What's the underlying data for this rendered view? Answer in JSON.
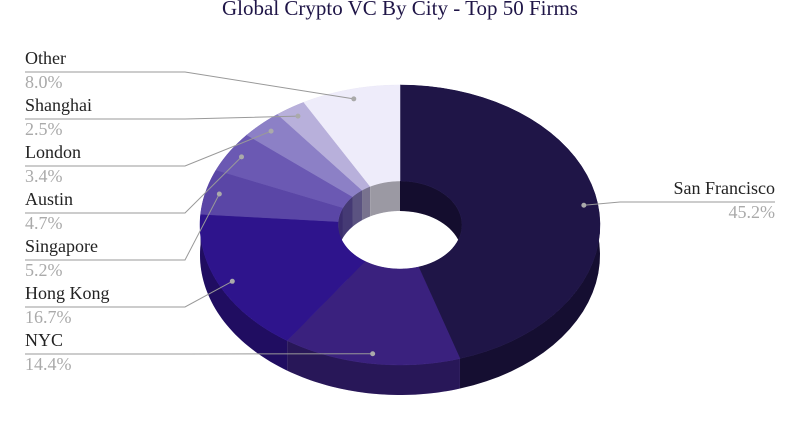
{
  "chart_data": {
    "type": "donut",
    "title": "Global Crypto VC By City - Top 50 Firms",
    "categories": [
      "San Francisco",
      "NYC",
      "Hong Kong",
      "Singapore",
      "Austin",
      "London",
      "Shanghai",
      "Other"
    ],
    "values": [
      45.2,
      14.4,
      16.7,
      5.2,
      4.7,
      3.4,
      2.5,
      8.0
    ],
    "value_labels": [
      "45.2%",
      "14.4%",
      "16.7%",
      "5.2%",
      "4.7%",
      "3.4%",
      "2.5%",
      "8.0%"
    ],
    "colors": [
      "#1f1547",
      "#3a217e",
      "#2e148c",
      "#5a46a6",
      "#6b59b3",
      "#8c80c6",
      "#b8b0db",
      "#eeecfa"
    ]
  }
}
